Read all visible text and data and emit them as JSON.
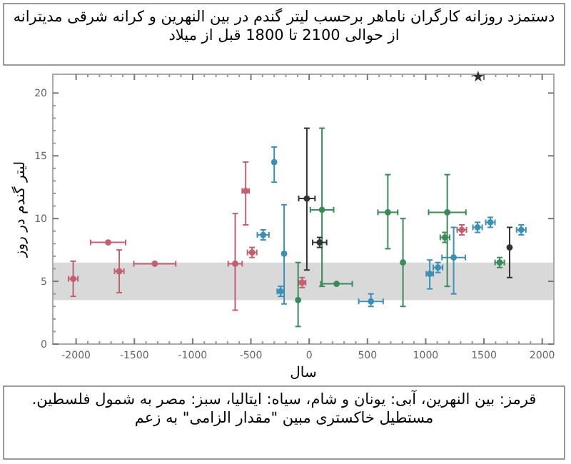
{
  "chart_data": {
    "type": "scatter",
    "title": "دستمزد روزانه کارگران ناماهر برحسب لیتر گندم در بین النهرین و کرانه شرقی مدیترانه از حوالی 2100 تا 1800 قبل از میلاد",
    "xlabel": "سال",
    "ylabel": "لیتر گندم در روز",
    "annotations": [
      "قرمز: بین النهرین، آبی: یونان و شام، سیاه: ایتالیا، سبز: مصر به شمول فلسطین. مستطیل خاکستری مبین \"مقدار الزامی\" به زعم"
    ],
    "xlim": [
      -2200,
      2100
    ],
    "ylim": [
      0,
      21.5
    ],
    "xticks": [
      -2000,
      -1500,
      -1000,
      -500,
      0,
      500,
      1000,
      1500,
      2000
    ],
    "yticks": [
      0,
      5,
      10,
      15,
      20
    ],
    "grid": false,
    "marker": "circle",
    "bands": [
      {
        "axis": "y",
        "from": 3.5,
        "to": 6.5,
        "color": "#d9d9d9"
      }
    ],
    "series": [
      {
        "color": "#c06070",
        "x": [
          -2025,
          -1725,
          -1630,
          -1325,
          -635,
          -545,
          -490,
          -60,
          1310
        ],
        "values": [
          5.2,
          8.1,
          5.8,
          6.4,
          6.4,
          12.2,
          7.3,
          4.9,
          9.1
        ],
        "errors": [
          [
            3.8,
            6.6
          ],
          null,
          [
            4.1,
            7.5
          ],
          null,
          [
            2.7,
            10.4
          ],
          [
            9.5,
            14.5
          ],
          0.4,
          0.4,
          0.4
        ],
        "xerrors": [
          40,
          150,
          40,
          180,
          60,
          30,
          40,
          30,
          40
        ]
      },
      {
        "color": "#3f8fb5",
        "x": [
          -395,
          -300,
          -215,
          -245,
          530,
          1035,
          1105,
          1240,
          1445,
          1555,
          1820
        ],
        "values": [
          8.7,
          14.5,
          7.2,
          4.2,
          3.4,
          5.6,
          6.1,
          6.9,
          9.3,
          9.7,
          9.1
        ],
        "errors": [
          0.4,
          [
            12.9,
            15.7
          ],
          [
            3.2,
            11.1
          ],
          0.4,
          [
            3.0,
            4.0
          ],
          [
            4.4,
            6.7
          ],
          0.4,
          [
            4.0,
            9.3
          ],
          0.4,
          0.4,
          0.4
        ],
        "xerrors": [
          50,
          null,
          null,
          30,
          105,
          30,
          40,
          100,
          40,
          40,
          40
        ]
      },
      {
        "color": "#3a8a5a",
        "x": [
          -95,
          110,
          235,
          675,
          805,
          1185,
          1165,
          1635
        ],
        "values": [
          3.5,
          10.7,
          4.8,
          10.5,
          6.5,
          10.5,
          8.5,
          6.5
        ],
        "errors": [
          [
            1.4,
            6.5
          ],
          [
            4.6,
            17.2
          ],
          null,
          [
            7.6,
            13.5
          ],
          [
            3.0,
            10.0
          ],
          [
            4.6,
            13.5
          ],
          0.4,
          0.4
        ],
        "xerrors": [
          null,
          100,
          135,
          85,
          null,
          160,
          40,
          40
        ]
      },
      {
        "color": "#333333",
        "x": [
          -20,
          90,
          1720
        ],
        "values": [
          11.6,
          8.1,
          7.7
        ],
        "errors": [
          [
            5.9,
            17.2
          ],
          0.4,
          [
            5.3,
            9.3
          ]
        ],
        "xerrors": [
          70,
          60,
          null
        ]
      },
      {
        "color": "#333333",
        "marker": "star",
        "x": [
          1450
        ],
        "values": [
          21.3
        ]
      }
    ]
  }
}
